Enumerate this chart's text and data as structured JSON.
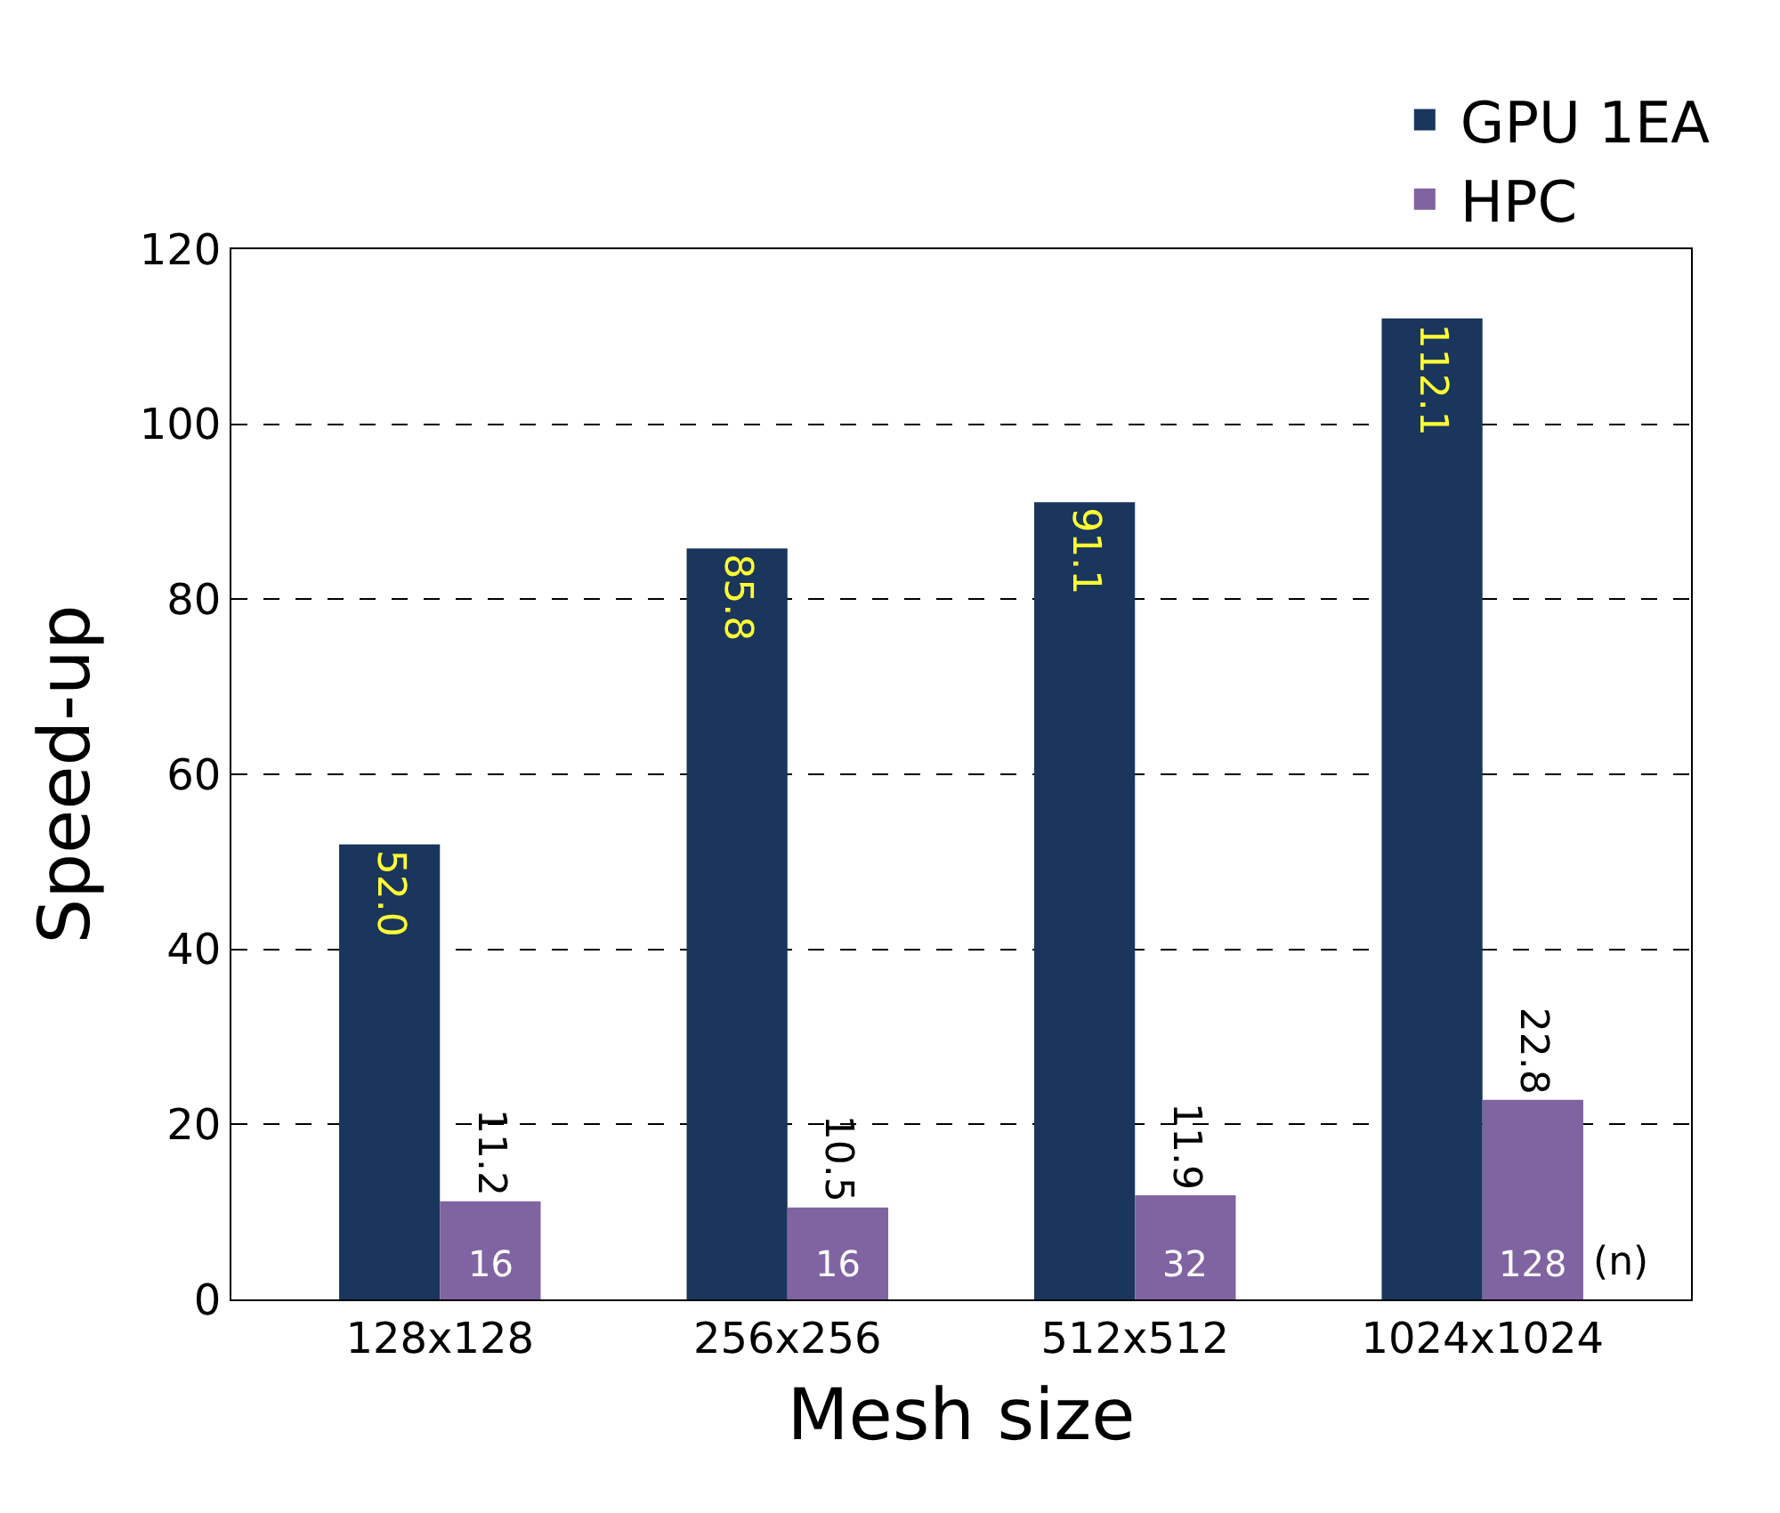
{
  "chart_data": {
    "type": "bar",
    "xlabel": "Mesh size",
    "ylabel": "Speed-up",
    "categories": [
      "128x128",
      "256x256",
      "512x512",
      "1024x1024"
    ],
    "series": [
      {
        "name": "GPU 1EA",
        "color": "#1a365d",
        "values": [
          52.0,
          85.8,
          91.1,
          112.1
        ],
        "value_labels": [
          "52.0",
          "85.8",
          "91.1",
          "112.1"
        ]
      },
      {
        "name": "HPC",
        "color": "#8064a2",
        "values": [
          11.2,
          10.5,
          11.9,
          22.8
        ],
        "value_labels": [
          "11.2",
          "10.5",
          "11.9",
          "22.8"
        ]
      }
    ],
    "annotations": [
      {
        "text": "16",
        "x": "128x128",
        "y": 0
      },
      {
        "text": "16",
        "x": "256x256",
        "y": 0
      },
      {
        "text": "32",
        "x": "512x512",
        "y": 0
      },
      {
        "text": "128",
        "x": "1024x1024",
        "y": 0
      },
      "(n)"
    ],
    "ylim": [
      0,
      120
    ],
    "yticks": [
      0,
      20,
      40,
      60,
      80,
      100,
      120
    ],
    "grid": "y",
    "legend": "top right"
  }
}
